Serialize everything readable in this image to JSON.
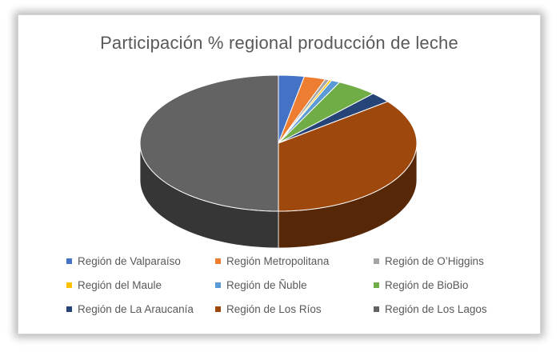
{
  "chart_data": {
    "type": "pie",
    "title": "Participación % regional producción de leche",
    "series": [
      {
        "name": "Región de Valparaíso",
        "value": 3.0,
        "color": "#4472c4"
      },
      {
        "name": "Región Metropolitana",
        "value": 2.5,
        "color": "#ed7d31"
      },
      {
        "name": "Región de O’Higgins",
        "value": 0.5,
        "color": "#a5a5a5"
      },
      {
        "name": "Región del Maule",
        "value": 0.3,
        "color": "#ffc000"
      },
      {
        "name": "Región de Ñuble",
        "value": 1.0,
        "color": "#5b9bd5"
      },
      {
        "name": "Región de BioBio",
        "value": 4.7,
        "color": "#70ad47"
      },
      {
        "name": "Región de La Araucanía",
        "value": 2.5,
        "color": "#264478"
      },
      {
        "name": "Región de Los Ríos",
        "value": 35.5,
        "color": "#9e480e"
      },
      {
        "name": "Región de Los Lagos",
        "value": 50.0,
        "color": "#636363"
      }
    ],
    "legend_position": "bottom",
    "style": "3d"
  }
}
